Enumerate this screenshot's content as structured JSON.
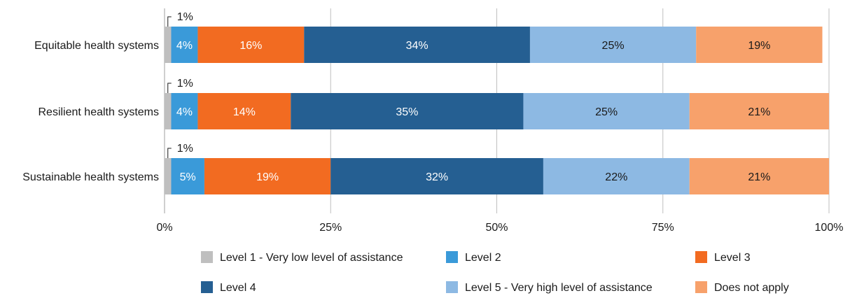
{
  "chart_data": {
    "type": "bar",
    "orientation": "horizontal",
    "stacked": true,
    "categories": [
      "Equitable health systems",
      "Resilient health systems",
      "Sustainable health systems"
    ],
    "series": [
      {
        "name": "Level 1 - Very low level of assistance",
        "color": "#bfbfbf",
        "values": [
          1,
          1,
          1
        ],
        "labels": [
          "1%",
          "1%",
          "1%"
        ],
        "label_color": "#1a1a1a"
      },
      {
        "name": "Level 2",
        "color": "#3a9ad9",
        "values": [
          4,
          4,
          5
        ],
        "labels": [
          "4%",
          "4%",
          "5%"
        ],
        "label_color": "#ffffff"
      },
      {
        "name": "Level 3",
        "color": "#f26b21",
        "values": [
          16,
          14,
          19
        ],
        "labels": [
          "16%",
          "14%",
          "19%"
        ],
        "label_color": "#ffffff"
      },
      {
        "name": "Level 4",
        "color": "#255f92",
        "values": [
          34,
          35,
          32
        ],
        "labels": [
          "34%",
          "35%",
          "32%"
        ],
        "label_color": "#ffffff"
      },
      {
        "name": "Level 5 - Very high level of assistance",
        "color": "#8db9e3",
        "values": [
          25,
          25,
          22
        ],
        "labels": [
          "25%",
          "25%",
          "22%"
        ],
        "label_color": "#1a1a1a"
      },
      {
        "name": "Does not apply",
        "color": "#f7a16b",
        "values": [
          19,
          21,
          21
        ],
        "labels": [
          "19%",
          "21%",
          "21%"
        ],
        "label_color": "#1a1a1a"
      }
    ],
    "xlim": [
      0,
      100
    ],
    "x_ticks": [
      0,
      25,
      50,
      75,
      100
    ],
    "x_tick_labels": [
      "0%",
      "25%",
      "50%",
      "75%",
      "100%"
    ],
    "grid": "vertical",
    "legend_position": "bottom",
    "gridline_color": "#bfbfbf"
  }
}
